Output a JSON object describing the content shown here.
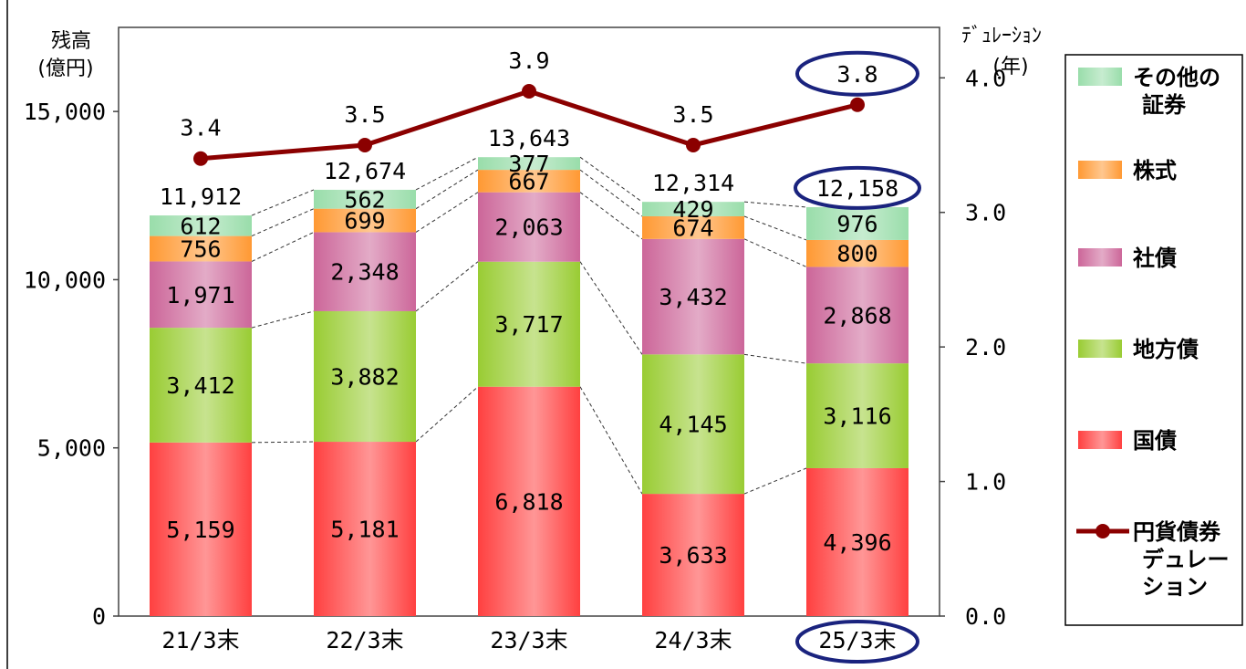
{
  "chart_data": {
    "type": "bar",
    "stacked": true,
    "categories": [
      "21/3末",
      "22/3末",
      "23/3末",
      "24/3末",
      "25/3末"
    ],
    "series": [
      {
        "name": "国債",
        "values": [
          5159,
          5181,
          6818,
          3633,
          4396
        ],
        "color": "#ff4040"
      },
      {
        "name": "地方債",
        "values": [
          3412,
          3882,
          3717,
          4145,
          3116
        ],
        "color": "#99cc33"
      },
      {
        "name": "社債",
        "values": [
          1971,
          2348,
          2063,
          3432,
          2868
        ],
        "color": "#cc6699"
      },
      {
        "name": "株式",
        "values": [
          756,
          699,
          667,
          674,
          800
        ],
        "color": "#ff9933"
      },
      {
        "name": "その他の証券",
        "values": [
          612,
          562,
          377,
          429,
          976
        ],
        "color": "#99ddaa"
      }
    ],
    "value_labels": [
      [
        "5,159",
        "5,181",
        "6,818",
        "3,633",
        "4,396"
      ],
      [
        "3,412",
        "3,882",
        "3,717",
        "4,145",
        "3,116"
      ],
      [
        "1,971",
        "2,348",
        "2,063",
        "3,432",
        "2,868"
      ],
      [
        "756",
        "699",
        "667",
        "674",
        "800"
      ],
      [
        "612",
        "562",
        "377",
        "429",
        "976"
      ]
    ],
    "totals": [
      11912,
      12674,
      13643,
      12314,
      12158
    ],
    "total_labels": [
      "11,912",
      "12,674",
      "13,643",
      "12,314",
      "12,158"
    ],
    "line": {
      "name": "円貨債券デュレーション",
      "values": [
        3.4,
        3.5,
        3.9,
        3.5,
        3.8
      ],
      "labels": [
        "3.4",
        "3.5",
        "3.9",
        "3.5",
        "3.8"
      ],
      "color": "#8b0000"
    },
    "y_left": {
      "title_line1": "残高",
      "title_line2": "(億円)",
      "range": [
        0,
        17500
      ],
      "ticks": [
        0,
        5000,
        10000,
        15000
      ],
      "tick_labels": [
        "0",
        "5,000",
        "10,000",
        "15,000"
      ]
    },
    "y_right": {
      "title_line1": "ﾃﾞｭﾚｰｼｮﾝ",
      "title_line2": "(年)",
      "range": [
        0,
        4.375
      ],
      "ticks": [
        0,
        1,
        2,
        3,
        4
      ],
      "tick_labels": [
        "0.0",
        "1.0",
        "2.0",
        "3.0",
        "4.0"
      ]
    },
    "legend": {
      "placement": "right",
      "items": [
        {
          "lines": [
            "その他の",
            "証券"
          ],
          "color": "#99ddaa",
          "kind": "bar"
        },
        {
          "lines": [
            "株式"
          ],
          "color": "#ff9933",
          "kind": "bar"
        },
        {
          "lines": [
            "社債"
          ],
          "color": "#cc6699",
          "kind": "bar"
        },
        {
          "lines": [
            "地方債"
          ],
          "color": "#99cc33",
          "kind": "bar"
        },
        {
          "lines": [
            "国債"
          ],
          "color": "#ff4040",
          "kind": "bar"
        },
        {
          "lines": [
            "円貨債券",
            "デュレー",
            "ション"
          ],
          "color": "#8b0000",
          "kind": "line"
        }
      ]
    },
    "highlight_color": "#1a237e",
    "highlighted_category_index": 4,
    "grid": false
  }
}
